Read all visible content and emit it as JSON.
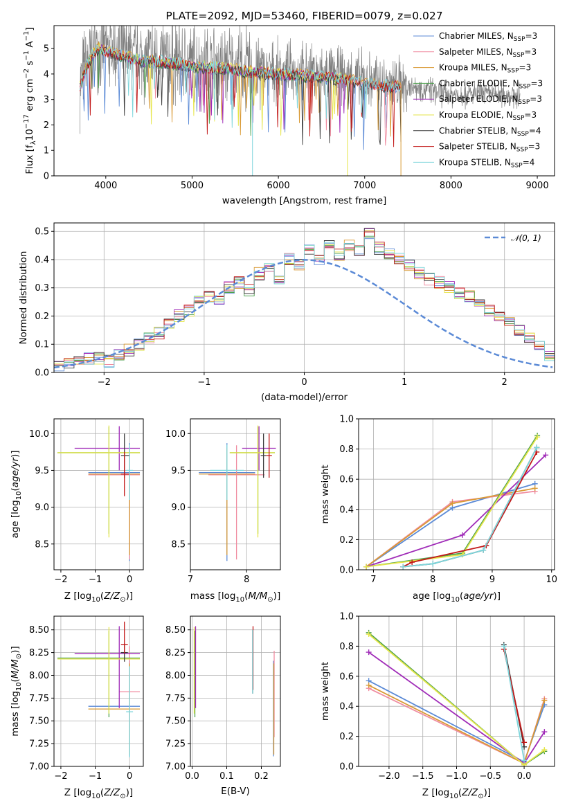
{
  "colors": {
    "Chabrier MILES": "#5b8ad6",
    "Salpeter MILES": "#f08ca0",
    "Kroupa MILES": "#d99a35",
    "Chabrier ELODIE": "#4da14d",
    "Salpeter ELODIE": "#a02cb8",
    "Kroupa ELODIE": "#e6e64a",
    "Chabrier STELIB": "#3d3d3d",
    "Salpeter STELIB": "#c21818",
    "Kroupa STELIB": "#7fd6dc",
    "data": "#808080",
    "gaussian": "#5b8ad6"
  },
  "chart_data": [
    {
      "id": "spectrum",
      "type": "line",
      "title": "PLATE=2092, MJD=53460, FIBERID=0079, z=0.027",
      "xlabel": "wavelength [Angstrom, rest frame]",
      "ylabel": "Flux [fλ10⁻¹⁷ erg cm⁻² s⁻¹ A⁻¹]",
      "xlim": [
        3400,
        9200
      ],
      "ylim": [
        0,
        5.9
      ],
      "xticks": [
        "4000",
        "5000",
        "6000",
        "7000",
        "8000",
        "9000"
      ],
      "yticks": [
        "0",
        "1",
        "2",
        "3",
        "4",
        "5"
      ],
      "legend_position": "top-right",
      "legend": [
        {
          "name": "Chabrier MILES",
          "nssp": "3"
        },
        {
          "name": "Salpeter MILES",
          "nssp": "3"
        },
        {
          "name": "Kroupa MILES",
          "nssp": "3"
        },
        {
          "name": "Chabrier ELODIE",
          "nssp": "3"
        },
        {
          "name": "Salpeter ELODIE",
          "nssp": "3"
        },
        {
          "name": "Kroupa ELODIE",
          "nssp": "3"
        },
        {
          "name": "Chabrier STELIB",
          "nssp": "4"
        },
        {
          "name": "Salpeter STELIB",
          "nssp": "3"
        },
        {
          "name": "Kroupa STELIB",
          "nssp": "4"
        }
      ],
      "continuum": {
        "x": [
          3700,
          3800,
          3900,
          4000,
          4200,
          4400,
          4600,
          4800,
          5000,
          5200,
          5400,
          5600,
          5800,
          6000,
          6200,
          6400,
          6600,
          6800,
          7000,
          7200,
          7400,
          7600,
          7800,
          8000,
          8200,
          8400,
          8600,
          8800
        ],
        "y": [
          3.6,
          4.6,
          5.1,
          5.0,
          4.8,
          4.6,
          4.6,
          4.5,
          4.4,
          4.35,
          4.3,
          4.2,
          4.15,
          4.1,
          4.05,
          4.0,
          3.95,
          3.85,
          3.75,
          3.65,
          3.6,
          3.5,
          3.3,
          3.2,
          3.2,
          3.2,
          3.2,
          3.1
        ]
      }
    },
    {
      "id": "residuals",
      "type": "histogram",
      "xlabel": "(data-model)/error",
      "ylabel": "Normed distribution",
      "xlim": [
        -2.5,
        2.5
      ],
      "ylim": [
        0,
        0.53
      ],
      "xticks": [
        -2,
        -1,
        0,
        1,
        2
      ],
      "yticks": [
        0.0,
        0.1,
        0.2,
        0.3,
        0.4,
        0.5
      ],
      "legend_label": "𝒩(0, 1)",
      "legend_position": "top-right",
      "bin_width": 0.1,
      "bin_start": -2.5,
      "gaussian": {
        "mean": 0,
        "sigma": 1
      },
      "values": [
        0.02,
        0.03,
        0.04,
        0.05,
        0.05,
        0.04,
        0.06,
        0.08,
        0.1,
        0.12,
        0.14,
        0.17,
        0.2,
        0.22,
        0.25,
        0.27,
        0.25,
        0.3,
        0.32,
        0.29,
        0.35,
        0.37,
        0.33,
        0.4,
        0.38,
        0.44,
        0.4,
        0.46,
        0.42,
        0.45,
        0.43,
        0.49,
        0.44,
        0.42,
        0.4,
        0.38,
        0.35,
        0.33,
        0.32,
        0.3,
        0.28,
        0.27,
        0.25,
        0.22,
        0.2,
        0.18,
        0.15,
        0.12,
        0.09,
        0.06
      ]
    },
    {
      "id": "age-vs-Z",
      "type": "errorbar",
      "xlabel": "Z [log10(Z/Z⊙)]",
      "ylabel": "age  [log10(age/yr)]",
      "xlim": [
        -2.2,
        0.4
      ],
      "ylim": [
        8.15,
        10.2
      ],
      "xticks": [
        -2,
        -1,
        0
      ],
      "yticks": [
        8.5,
        9.0,
        9.5,
        10.0
      ],
      "points": [
        {
          "model": "Chabrier MILES",
          "x": 0.0,
          "xerr": [
            1.2,
            0.3
          ],
          "y": 9.47,
          "yerr": [
            1.2,
            0.4
          ]
        },
        {
          "model": "Salpeter MILES",
          "x": 0.0,
          "xerr": [
            1.2,
            0.3
          ],
          "y": 9.44,
          "yerr": [
            1.15,
            0.4
          ]
        },
        {
          "model": "Kroupa MILES",
          "x": 0.0,
          "xerr": [
            1.2,
            0.3
          ],
          "y": 9.45,
          "yerr": [
            1.1,
            0.35
          ]
        },
        {
          "model": "Chabrier ELODIE",
          "x": -0.6,
          "xerr": [
            1.5,
            0.9
          ],
          "y": 9.74,
          "yerr": [
            1.1,
            0.35
          ]
        },
        {
          "model": "Salpeter ELODIE",
          "x": -0.3,
          "xerr": [
            1.3,
            0.6
          ],
          "y": 9.8,
          "yerr": [
            0.3,
            0.3
          ]
        },
        {
          "model": "Kroupa ELODIE",
          "x": -0.6,
          "xerr": [
            1.5,
            0.9
          ],
          "y": 9.74,
          "yerr": [
            1.15,
            0.37
          ]
        },
        {
          "model": "Chabrier STELIB",
          "x": -0.15,
          "xerr": [
            0.1,
            0.15
          ],
          "y": 9.7,
          "yerr": [
            0.3,
            0.3
          ]
        },
        {
          "model": "Salpeter STELIB",
          "x": -0.15,
          "xerr": [
            0.1,
            0.15
          ],
          "y": 9.45,
          "yerr": [
            0.3,
            0.3
          ]
        },
        {
          "model": "Kroupa STELIB",
          "x": 0.0,
          "xerr": [
            0.1,
            0.1
          ],
          "y": 9.5,
          "yerr": [
            0.4,
            0.35
          ]
        }
      ]
    },
    {
      "id": "age-vs-mass",
      "type": "errorbar",
      "xlabel": "mass [log10(M/M⊙)]",
      "ylabel": "",
      "xlim": [
        7.0,
        8.6
      ],
      "ylim": [
        8.15,
        10.2
      ],
      "xticks": [
        7,
        8
      ],
      "yticks": [
        8.5,
        9.0,
        9.5,
        10.0
      ],
      "points": [
        {
          "model": "Chabrier MILES",
          "x": 7.65,
          "xerr": [
            0.5,
            0.5
          ],
          "y": 9.47,
          "yerr": [
            1.2,
            0.4
          ]
        },
        {
          "model": "Salpeter MILES",
          "x": 7.82,
          "xerr": [
            0.5,
            0.5
          ],
          "y": 9.44,
          "yerr": [
            1.15,
            0.4
          ]
        },
        {
          "model": "Kroupa MILES",
          "x": 7.65,
          "xerr": [
            0.5,
            0.5
          ],
          "y": 9.45,
          "yerr": [
            1.1,
            0.35
          ]
        },
        {
          "model": "Chabrier ELODIE",
          "x": 8.2,
          "xerr": [
            0.5,
            0.3
          ],
          "y": 9.74,
          "yerr": [
            1.1,
            0.35
          ]
        },
        {
          "model": "Salpeter ELODIE",
          "x": 8.22,
          "xerr": [
            0.3,
            0.3
          ],
          "y": 9.8,
          "yerr": [
            0.3,
            0.3
          ]
        },
        {
          "model": "Kroupa ELODIE",
          "x": 8.2,
          "xerr": [
            0.5,
            0.3
          ],
          "y": 9.74,
          "yerr": [
            1.15,
            0.37
          ]
        },
        {
          "model": "Chabrier STELIB",
          "x": 8.3,
          "xerr": [
            0.05,
            0.05
          ],
          "y": 9.7,
          "yerr": [
            0.3,
            0.3
          ]
        },
        {
          "model": "Salpeter STELIB",
          "x": 8.4,
          "xerr": [
            0.05,
            0.05
          ],
          "y": 9.7,
          "yerr": [
            0.3,
            0.3
          ]
        },
        {
          "model": "Kroupa STELIB",
          "x": 7.65,
          "xerr": [
            0.3,
            0.3
          ],
          "y": 9.5,
          "yerr": [
            0.4,
            0.35
          ]
        }
      ]
    },
    {
      "id": "massweight-vs-age",
      "type": "line",
      "xlabel": "age  [log10(age/yr)]",
      "ylabel": "mass weight",
      "xlim": [
        6.75,
        10.05
      ],
      "ylim": [
        0,
        1.0
      ],
      "xticks": [
        7,
        8,
        9,
        10
      ],
      "yticks": [
        0.0,
        0.2,
        0.4,
        0.6,
        0.8,
        1.0
      ],
      "series": [
        {
          "name": "Chabrier MILES",
          "x": [
            6.88,
            8.33,
            9.72
          ],
          "y": [
            0.02,
            0.41,
            0.57
          ]
        },
        {
          "name": "Salpeter MILES",
          "x": [
            6.88,
            8.33,
            9.72
          ],
          "y": [
            0.02,
            0.45,
            0.52
          ]
        },
        {
          "name": "Kroupa MILES",
          "x": [
            6.88,
            8.33,
            9.72
          ],
          "y": [
            0.02,
            0.44,
            0.54
          ]
        },
        {
          "name": "Chabrier ELODIE",
          "x": [
            6.88,
            8.5,
            9.76
          ],
          "y": [
            0.02,
            0.11,
            0.89
          ]
        },
        {
          "name": "Salpeter ELODIE",
          "x": [
            6.88,
            8.5,
            9.9
          ],
          "y": [
            0.02,
            0.23,
            0.76
          ]
        },
        {
          "name": "Kroupa ELODIE",
          "x": [
            6.88,
            8.5,
            9.76
          ],
          "y": [
            0.02,
            0.1,
            0.88
          ]
        },
        {
          "name": "Chabrier STELIB",
          "x": [
            7.5,
            8.0,
            8.85,
            9.75
          ],
          "y": [
            0.02,
            0.04,
            0.13,
            0.81
          ]
        },
        {
          "name": "Salpeter STELIB",
          "x": [
            7.5,
            7.65,
            8.9,
            9.75
          ],
          "y": [
            0.02,
            0.05,
            0.16,
            0.78
          ]
        },
        {
          "name": "Kroupa STELIB",
          "x": [
            7.5,
            8.0,
            8.85,
            9.75
          ],
          "y": [
            0.02,
            0.04,
            0.13,
            0.81
          ]
        }
      ]
    },
    {
      "id": "mass-vs-Z",
      "type": "errorbar",
      "xlabel": "Z [log10(Z/Z⊙)]",
      "ylabel": "mass [log10(M/M⊙)]",
      "xlim": [
        -2.2,
        0.4
      ],
      "ylim": [
        7.0,
        8.65
      ],
      "xticks": [
        -2,
        -1,
        0
      ],
      "yticks": [
        7.0,
        7.25,
        7.5,
        7.75,
        8.0,
        8.25,
        8.5
      ],
      "points": [
        {
          "model": "Chabrier MILES",
          "x": 0.0,
          "xerr": [
            1.2,
            0.3
          ],
          "y": 7.66,
          "yerr": [
            0.55,
            0.5
          ]
        },
        {
          "model": "Salpeter MILES",
          "x": 0.0,
          "xerr": [
            0.3,
            0.3
          ],
          "y": 7.82,
          "yerr": [
            0.5,
            0.5
          ]
        },
        {
          "model": "Kroupa MILES",
          "x": 0.0,
          "xerr": [
            1.2,
            0.3
          ],
          "y": 7.63,
          "yerr": [
            0.5,
            0.5
          ]
        },
        {
          "model": "Chabrier ELODIE",
          "x": -0.6,
          "xerr": [
            1.5,
            0.9
          ],
          "y": 8.19,
          "yerr": [
            0.65,
            0.3
          ]
        },
        {
          "model": "Salpeter ELODIE",
          "x": -0.3,
          "xerr": [
            1.3,
            0.6
          ],
          "y": 8.24,
          "yerr": [
            0.6,
            0.3
          ]
        },
        {
          "model": "Kroupa ELODIE",
          "x": -0.6,
          "xerr": [
            1.5,
            0.9
          ],
          "y": 8.18,
          "yerr": [
            0.6,
            0.35
          ]
        },
        {
          "model": "Chabrier STELIB",
          "x": -0.15,
          "xerr": [
            0.1,
            0.1
          ],
          "y": 8.25,
          "yerr": [
            0.1,
            0.1
          ]
        },
        {
          "model": "Salpeter STELIB",
          "x": -0.15,
          "xerr": [
            0.1,
            0.1
          ],
          "y": 8.34,
          "yerr": [
            0.1,
            0.25
          ]
        },
        {
          "model": "Kroupa STELIB",
          "x": 0.0,
          "xerr": [
            0.1,
            0.1
          ],
          "y": 7.6,
          "yerr": [
            0.5,
            0.5
          ]
        }
      ]
    },
    {
      "id": "mass-vs-ebv",
      "type": "errorbar",
      "xlabel": "E(B-V)",
      "ylabel": "",
      "xlim": [
        -0.005,
        0.255
      ],
      "ylim": [
        7.0,
        8.65
      ],
      "xticks": [
        0.0,
        0.1,
        0.2
      ],
      "yticks": [
        7.0,
        7.25,
        7.5,
        7.75,
        8.0,
        8.25,
        8.5
      ],
      "points": [
        {
          "model": "Chabrier MILES",
          "x": 0.235,
          "xerr": [
            0,
            0
          ],
          "y": 7.66,
          "yerr": [
            0.55,
            0.5
          ]
        },
        {
          "model": "Salpeter MILES",
          "x": 0.237,
          "xerr": [
            0,
            0
          ],
          "y": 7.82,
          "yerr": [
            0.5,
            0.45
          ]
        },
        {
          "model": "Kroupa MILES",
          "x": 0.236,
          "xerr": [
            0,
            0
          ],
          "y": 7.63,
          "yerr": [
            0.5,
            0.5
          ]
        },
        {
          "model": "Chabrier ELODIE",
          "x": 0.008,
          "xerr": [
            0,
            0
          ],
          "y": 8.19,
          "yerr": [
            0.65,
            0.3
          ]
        },
        {
          "model": "Salpeter ELODIE",
          "x": 0.01,
          "xerr": [
            0,
            0
          ],
          "y": 8.24,
          "yerr": [
            0.6,
            0.3
          ]
        },
        {
          "model": "Kroupa ELODIE",
          "x": 0.006,
          "xerr": [
            0,
            0
          ],
          "y": 8.18,
          "yerr": [
            0.6,
            0.35
          ]
        },
        {
          "model": "Chabrier STELIB",
          "x": 0.175,
          "xerr": [
            0,
            0
          ],
          "y": 8.25,
          "yerr": [
            0.45,
            0.25
          ]
        },
        {
          "model": "Salpeter STELIB",
          "x": 0.176,
          "xerr": [
            0,
            0
          ],
          "y": 8.34,
          "yerr": [
            0.5,
            0.2
          ]
        },
        {
          "model": "Kroupa STELIB",
          "x": 0.175,
          "xerr": [
            0,
            0
          ],
          "y": 8.2,
          "yerr": [
            0.4,
            0.3
          ]
        }
      ]
    },
    {
      "id": "massweight-vs-Z",
      "type": "line",
      "xlabel": "Z [log10(Z/Z⊙)]",
      "ylabel": "mass weight",
      "xlim": [
        -2.45,
        0.45
      ],
      "ylim": [
        0,
        1.0
      ],
      "xticks": [
        -2.0,
        -1.5,
        -1.0,
        -0.5,
        0.0
      ],
      "yticks": [
        0.0,
        0.2,
        0.4,
        0.6,
        0.8,
        1.0
      ],
      "series": [
        {
          "name": "Chabrier MILES",
          "x": [
            -2.3,
            0.0,
            0.3
          ],
          "y": [
            0.57,
            0.03,
            0.41
          ]
        },
        {
          "name": "Salpeter MILES",
          "x": [
            -2.3,
            0.0,
            0.3
          ],
          "y": [
            0.52,
            0.02,
            0.45
          ]
        },
        {
          "name": "Kroupa MILES",
          "x": [
            -2.3,
            0.0,
            0.3
          ],
          "y": [
            0.54,
            0.02,
            0.44
          ]
        },
        {
          "name": "Chabrier ELODIE",
          "x": [
            -2.3,
            0.0,
            0.3
          ],
          "y": [
            0.89,
            0.01,
            0.1
          ]
        },
        {
          "name": "Salpeter ELODIE",
          "x": [
            -2.3,
            0.0,
            0.3
          ],
          "y": [
            0.76,
            0.02,
            0.23
          ]
        },
        {
          "name": "Kroupa ELODIE",
          "x": [
            -2.3,
            0.0,
            0.3
          ],
          "y": [
            0.88,
            0.01,
            0.11
          ]
        },
        {
          "name": "Chabrier STELIB",
          "x": [
            -0.3,
            0.0
          ],
          "y": [
            0.81,
            0.13
          ]
        },
        {
          "name": "Salpeter STELIB",
          "x": [
            -0.3,
            0.0
          ],
          "y": [
            0.78,
            0.16
          ]
        },
        {
          "name": "Kroupa STELIB",
          "x": [
            -0.3,
            0.0
          ],
          "y": [
            0.8,
            0.04
          ]
        }
      ]
    }
  ]
}
